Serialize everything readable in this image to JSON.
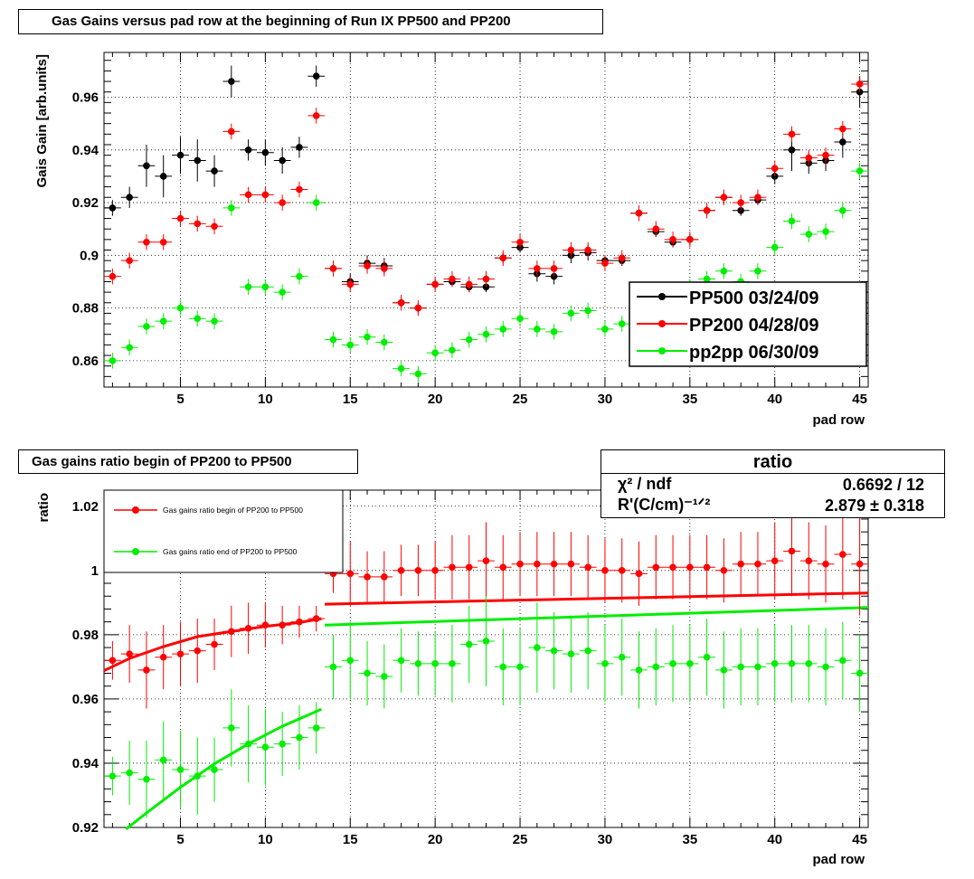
{
  "chart_data": [
    {
      "type": "scatter",
      "title": "Gas Gains versus pad row at the beginning of Run IX PP500 and PP200",
      "xlabel": "pad row",
      "ylabel": "Gais Gain [arb.units]",
      "xlim": [
        0.5,
        45.5
      ],
      "ylim": [
        0.85,
        0.977
      ],
      "xticks": [
        5,
        10,
        15,
        20,
        25,
        30,
        35,
        40,
        45
      ],
      "yticks": [
        0.86,
        0.88,
        0.9,
        0.92,
        0.94,
        0.96
      ],
      "ytick_labels": [
        "0.86",
        "0.88",
        "0.9",
        "0.92",
        "0.94",
        "0.96"
      ],
      "grid": true,
      "legend_position": "right",
      "series": [
        {
          "name": "PP500 03/24/09",
          "color": "#000000",
          "x": [
            1,
            2,
            3,
            4,
            5,
            6,
            7,
            8,
            9,
            10,
            11,
            12,
            13,
            14,
            15,
            16,
            17,
            18,
            19,
            20,
            21,
            22,
            23,
            24,
            25,
            26,
            27,
            28,
            29,
            30,
            31,
            32,
            33,
            34,
            35,
            36,
            37,
            38,
            39,
            40,
            41,
            42,
            43,
            44,
            45
          ],
          "y": [
            0.918,
            0.922,
            0.934,
            0.93,
            0.938,
            0.936,
            0.932,
            0.966,
            0.94,
            0.939,
            0.936,
            0.941,
            0.968,
            0.895,
            0.89,
            0.897,
            0.896,
            0.882,
            0.88,
            0.889,
            0.89,
            0.888,
            0.888,
            0.899,
            0.903,
            0.893,
            0.892,
            0.9,
            0.901,
            0.898,
            0.898,
            0.916,
            0.909,
            0.905,
            0.906,
            0.917,
            0.922,
            0.917,
            0.921,
            0.93,
            0.94,
            0.935,
            0.936,
            0.943,
            0.962
          ],
          "err": [
            0.003,
            0.004,
            0.008,
            0.008,
            0.007,
            0.008,
            0.006,
            0.006,
            0.004,
            0.005,
            0.005,
            0.004,
            0.004,
            0.003,
            0.003,
            0.003,
            0.003,
            0.002,
            0.002,
            0.002,
            0.002,
            0.002,
            0.002,
            0.002,
            0.002,
            0.003,
            0.003,
            0.003,
            0.003,
            0.002,
            0.002,
            0.003,
            0.002,
            0.002,
            0.002,
            0.002,
            0.002,
            0.002,
            0.002,
            0.003,
            0.008,
            0.004,
            0.004,
            0.006,
            0.006
          ]
        },
        {
          "name": "PP200 04/28/09",
          "color": "#ff0000",
          "x": [
            1,
            2,
            3,
            4,
            5,
            6,
            7,
            8,
            9,
            10,
            11,
            12,
            13,
            14,
            15,
            16,
            17,
            18,
            19,
            20,
            21,
            22,
            23,
            24,
            25,
            26,
            27,
            28,
            29,
            30,
            31,
            32,
            33,
            34,
            35,
            36,
            37,
            38,
            39,
            40,
            41,
            42,
            43,
            44,
            45
          ],
          "y": [
            0.892,
            0.898,
            0.905,
            0.905,
            0.914,
            0.912,
            0.911,
            0.947,
            0.923,
            0.923,
            0.92,
            0.925,
            0.953,
            0.895,
            0.889,
            0.896,
            0.895,
            0.882,
            0.88,
            0.889,
            0.891,
            0.889,
            0.891,
            0.899,
            0.905,
            0.895,
            0.895,
            0.902,
            0.902,
            0.897,
            0.899,
            0.916,
            0.91,
            0.906,
            0.906,
            0.917,
            0.922,
            0.92,
            0.922,
            0.933,
            0.946,
            0.937,
            0.938,
            0.948,
            0.965
          ]
        },
        {
          "name": "pp2pp 06/30/09",
          "color": "#00ee00",
          "x": [
            1,
            2,
            3,
            4,
            5,
            6,
            7,
            8,
            9,
            10,
            11,
            12,
            13,
            14,
            15,
            16,
            17,
            18,
            19,
            20,
            21,
            22,
            23,
            24,
            25,
            26,
            27,
            28,
            29,
            30,
            31,
            32,
            33,
            34,
            35,
            36,
            37,
            38,
            39,
            40,
            41,
            42,
            43,
            44,
            45
          ],
          "y": [
            0.86,
            0.865,
            0.873,
            0.875,
            0.88,
            0.876,
            0.875,
            0.918,
            0.888,
            0.888,
            0.886,
            0.892,
            0.92,
            0.868,
            0.866,
            0.869,
            0.867,
            0.857,
            0.855,
            0.863,
            0.864,
            0.868,
            0.87,
            0.872,
            0.876,
            0.872,
            0.871,
            0.878,
            0.879,
            0.872,
            0.874,
            0.885,
            0.886,
            0.886,
            0.888,
            0.891,
            0.894,
            0.89,
            0.894,
            0.903,
            0.913,
            0.908,
            0.909,
            0.917,
            0.932
          ]
        }
      ]
    },
    {
      "type": "scatter",
      "title": "Gas gains ratio begin of PP200 to PP500",
      "xlabel": "pad row",
      "ylabel": "ratio",
      "xlim": [
        0.5,
        45.5
      ],
      "ylim": [
        0.92,
        1.025
      ],
      "xticks": [
        5,
        10,
        15,
        20,
        25,
        30,
        35,
        40,
        45
      ],
      "yticks": [
        0.92,
        0.94,
        0.96,
        0.98,
        1.0,
        1.02
      ],
      "ytick_labels": [
        "0.92",
        "0.94",
        "0.96",
        "0.98",
        "1",
        "1.02"
      ],
      "grid": true,
      "legend_position": "top-left",
      "series": [
        {
          "name": "Gas gains ratio begin of PP200 to PP500",
          "color": "#ff0000",
          "x": [
            1,
            2,
            3,
            4,
            5,
            6,
            7,
            8,
            9,
            10,
            11,
            12,
            13,
            14,
            15,
            16,
            17,
            18,
            19,
            20,
            21,
            22,
            23,
            24,
            25,
            26,
            27,
            28,
            29,
            30,
            31,
            32,
            33,
            34,
            35,
            36,
            37,
            38,
            39,
            40,
            41,
            42,
            43,
            44,
            45
          ],
          "y": [
            0.972,
            0.974,
            0.969,
            0.973,
            0.974,
            0.975,
            0.977,
            0.981,
            0.982,
            0.983,
            0.983,
            0.984,
            0.985,
            0.999,
            0.999,
            0.998,
            0.998,
            1.0,
            1.0,
            1.0,
            1.001,
            1.001,
            1.003,
            1.001,
            1.002,
            1.002,
            1.002,
            1.002,
            1.001,
            1.0,
            1.0,
            0.999,
            1.001,
            1.001,
            1.001,
            1.001,
            1.0,
            1.002,
            1.002,
            1.003,
            1.006,
            1.003,
            1.002,
            1.005,
            1.002
          ],
          "err": [
            0.006,
            0.009,
            0.012,
            0.01,
            0.01,
            0.01,
            0.008,
            0.008,
            0.008,
            0.007,
            0.006,
            0.005,
            0.004,
            0.006,
            0.01,
            0.008,
            0.008,
            0.008,
            0.008,
            0.009,
            0.01,
            0.01,
            0.012,
            0.01,
            0.01,
            0.01,
            0.01,
            0.01,
            0.01,
            0.01,
            0.01,
            0.01,
            0.01,
            0.01,
            0.01,
            0.01,
            0.01,
            0.01,
            0.01,
            0.012,
            0.014,
            0.012,
            0.012,
            0.014,
            0.016
          ]
        },
        {
          "name": "Gas gains ratio end of PP200 to PP500",
          "color": "#00ee00",
          "x": [
            1,
            2,
            3,
            4,
            5,
            6,
            7,
            8,
            9,
            10,
            11,
            12,
            13,
            14,
            15,
            16,
            17,
            18,
            19,
            20,
            21,
            22,
            23,
            24,
            25,
            26,
            27,
            28,
            29,
            30,
            31,
            32,
            33,
            34,
            35,
            36,
            37,
            38,
            39,
            40,
            41,
            42,
            43,
            44,
            45
          ],
          "y": [
            0.936,
            0.937,
            0.935,
            0.941,
            0.938,
            0.936,
            0.938,
            0.951,
            0.946,
            0.945,
            0.946,
            0.948,
            0.951,
            0.97,
            0.972,
            0.968,
            0.967,
            0.972,
            0.971,
            0.971,
            0.971,
            0.977,
            0.978,
            0.97,
            0.97,
            0.976,
            0.975,
            0.974,
            0.975,
            0.971,
            0.973,
            0.969,
            0.97,
            0.971,
            0.971,
            0.973,
            0.969,
            0.97,
            0.97,
            0.971,
            0.971,
            0.971,
            0.97,
            0.972,
            0.968
          ],
          "err": [
            0.006,
            0.01,
            0.012,
            0.012,
            0.012,
            0.012,
            0.01,
            0.012,
            0.012,
            0.012,
            0.01,
            0.01,
            0.008,
            0.01,
            0.012,
            0.01,
            0.01,
            0.01,
            0.01,
            0.01,
            0.012,
            0.012,
            0.014,
            0.012,
            0.012,
            0.014,
            0.012,
            0.012,
            0.012,
            0.012,
            0.012,
            0.012,
            0.012,
            0.012,
            0.012,
            0.012,
            0.012,
            0.012,
            0.012,
            0.012,
            0.012,
            0.012,
            0.012,
            0.012,
            0.012
          ]
        }
      ],
      "fits": [
        {
          "color": "#ff0000",
          "segments": [
            {
              "x": [
                0.5,
                2,
                4,
                6,
                8,
                10,
                12,
                13.3
              ],
              "y": [
                0.9688,
                0.9726,
                0.9763,
                0.9794,
                0.981,
                0.9826,
                0.9838,
                0.985
              ]
            },
            {
              "x": [
                13.5,
                45.5
              ],
              "y": [
                0.9895,
                0.993
              ]
            }
          ]
        },
        {
          "color": "#00ee00",
          "segments": [
            {
              "x": [
                1.8,
                3,
                5,
                7,
                9,
                11,
                13.3
              ],
              "y": [
                0.9195,
                0.9245,
                0.9325,
                0.9398,
                0.946,
                0.9515,
                0.9568
              ]
            },
            {
              "x": [
                13.5,
                45.5
              ],
              "y": [
                0.983,
                0.9885
              ]
            }
          ]
        }
      ],
      "stats_box": {
        "title": "ratio",
        "rows": [
          {
            "label": "χ² / ndf",
            "value": "0.6692 / 12"
          },
          {
            "label": "R'(C/cm)⁻¹ᐟ²",
            "value": "2.879 ± 0.318"
          }
        ]
      }
    }
  ]
}
